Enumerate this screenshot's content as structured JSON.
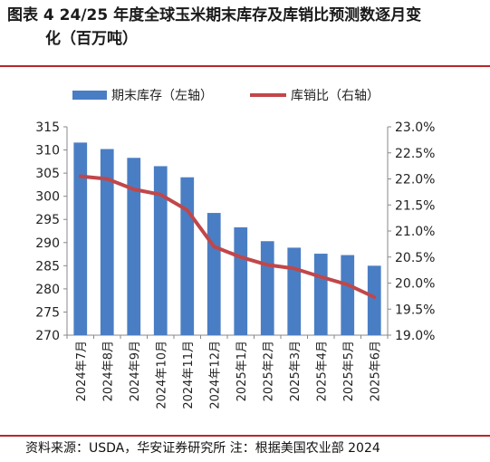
{
  "title": {
    "line1": "图表 4 24/25 年度全球玉米期末库存及库销比预测数逐月变",
    "line2": "化（百万吨）"
  },
  "source": "资料来源：USDA，华安证券研究所 注：根据美国农业部 2024",
  "colors": {
    "bar": "#4a7ec4",
    "line": "#c0474a",
    "rule": "#b8262b"
  },
  "chart_data": {
    "type": "bar+line",
    "categories": [
      "2024年7月",
      "2024年8月",
      "2024年9月",
      "2024年10月",
      "2024年11月",
      "2024年12月",
      "2025年1月",
      "2025年2月",
      "2025年3月",
      "2025年4月",
      "2025年5月",
      "2025年6月"
    ],
    "series": [
      {
        "name": "期末库存（左轴）",
        "type": "bar",
        "axis": "left",
        "values": [
          311.6,
          310.2,
          308.3,
          306.5,
          304.1,
          296.4,
          293.3,
          290.3,
          288.9,
          287.6,
          287.3,
          285.0
        ]
      },
      {
        "name": "库销比（右轴）",
        "type": "line",
        "axis": "right",
        "values": [
          22.05,
          22.0,
          21.8,
          21.7,
          21.4,
          20.7,
          20.5,
          20.35,
          20.28,
          20.12,
          19.97,
          19.73
        ]
      }
    ],
    "y_left": {
      "min": 270,
      "max": 315,
      "step": 5,
      "ticks": [
        "270",
        "275",
        "280",
        "285",
        "290",
        "295",
        "300",
        "305",
        "310",
        "315"
      ]
    },
    "y_right": {
      "min": 19.0,
      "max": 23.0,
      "step": 0.5,
      "ticks": [
        "19.0%",
        "19.5%",
        "20.0%",
        "20.5%",
        "21.0%",
        "21.5%",
        "22.0%",
        "22.5%",
        "23.0%"
      ]
    },
    "legend_position": "top",
    "grid": false
  }
}
